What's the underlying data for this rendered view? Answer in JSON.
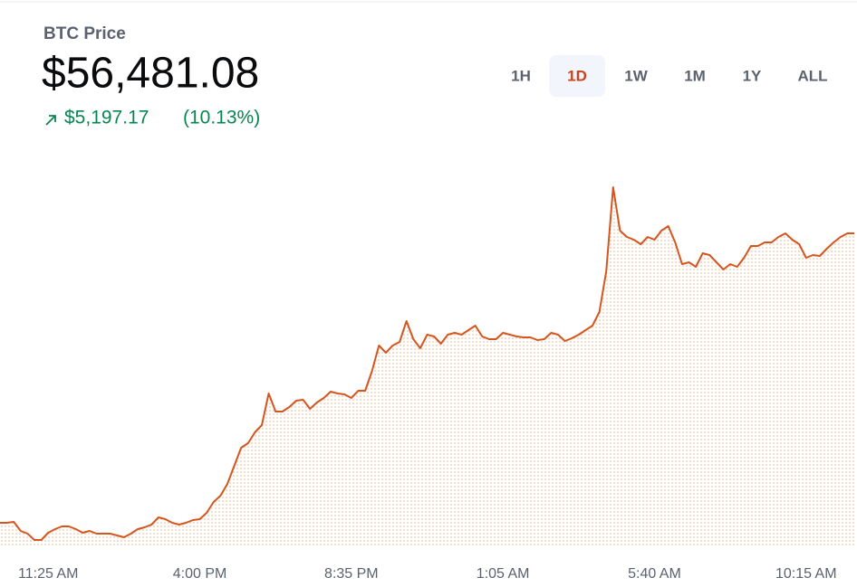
{
  "header": {
    "label": "BTC Price",
    "price": "$56,481.08",
    "change": "$5,197.17",
    "change_percent": "(10.13%)"
  },
  "tabs": {
    "items": [
      "1H",
      "1D",
      "1W",
      "1M",
      "1Y",
      "ALL"
    ],
    "active": 1
  },
  "chart_data": {
    "type": "line",
    "color": "#d4561f",
    "values": [
      51284,
      51284,
      51300,
      51138,
      51089,
      50975,
      50975,
      51105,
      51170,
      51219,
      51219,
      51170,
      51105,
      51138,
      51089,
      51089,
      51089,
      51056,
      51024,
      51089,
      51170,
      51202,
      51251,
      51381,
      51349,
      51284,
      51251,
      51284,
      51332,
      51349,
      51462,
      51657,
      51771,
      51982,
      52307,
      52632,
      52713,
      52908,
      53038,
      53606,
      53281,
      53281,
      53362,
      53476,
      53492,
      53330,
      53444,
      53525,
      53638,
      53606,
      53590,
      53525,
      53655,
      53655,
      54012,
      54467,
      54337,
      54467,
      54532,
      54905,
      54580,
      54418,
      54662,
      54629,
      54499,
      54662,
      54694,
      54662,
      54743,
      54824,
      54629,
      54580,
      54580,
      54694,
      54662,
      54629,
      54613,
      54613,
      54564,
      54580,
      54694,
      54662,
      54548,
      54597,
      54662,
      54743,
      54824,
      55068,
      55798,
      57309,
      56529,
      56416,
      56367,
      56286,
      56416,
      56367,
      56529,
      56610,
      56318,
      55928,
      55961,
      55880,
      56123,
      56091,
      55961,
      55831,
      55928,
      55880,
      56042,
      56253,
      56253,
      56318,
      56318,
      56416,
      56480,
      56367,
      56286,
      56042,
      56091,
      56074,
      56204,
      56318,
      56416,
      56480,
      56481
    ],
    "xlim": [
      0,
      124
    ],
    "ylim": [
      50878,
      58072
    ],
    "xticks": [
      {
        "value": 7,
        "label": "11:25 AM"
      },
      {
        "value": 29,
        "label": "4:00 PM"
      },
      {
        "value": 51,
        "label": "8:35 PM"
      },
      {
        "value": 73,
        "label": "1:05 AM"
      },
      {
        "value": 95,
        "label": "5:40 AM"
      },
      {
        "value": 117,
        "label": "10:15 AM"
      }
    ]
  }
}
